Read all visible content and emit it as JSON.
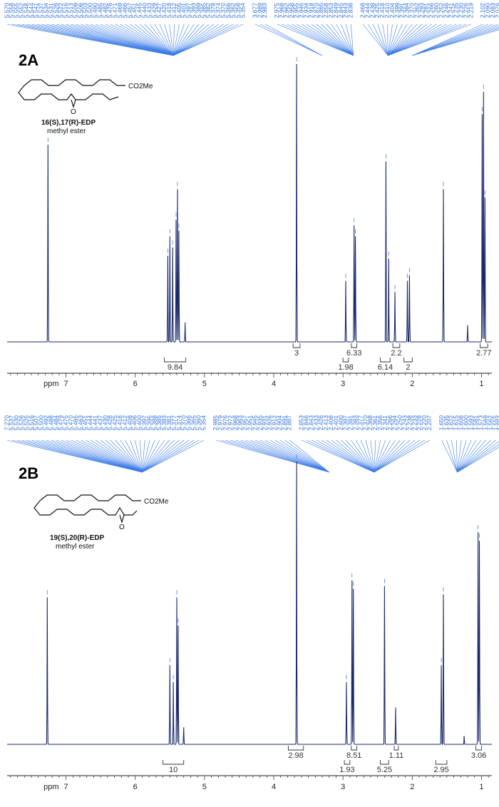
{
  "chart_data": [
    {
      "type": "line",
      "panel": "2A",
      "compound": {
        "name_bold": "16(S),17(R)-EDP",
        "name_line2": "methyl ester",
        "ester_label": "CO2Me",
        "epoxide_label": "O"
      },
      "xlabel": "ppm",
      "x_direction": "reversed",
      "xlim": [
        7.85,
        0.85
      ],
      "xticks": [
        7,
        6,
        5,
        4,
        3,
        2,
        1
      ],
      "peak_groups": [
        {
          "labels": [
            "5.570",
            "5.558",
            "5.555",
            "5.552",
            "5.548",
            "5.544",
            "5.541",
            "5.537",
            "5.534",
            "5.531",
            "5.526",
            "5.522",
            "5.516",
            "5.513",
            "5.509",
            "5.506",
            "5.503",
            "5.500",
            "5.490",
            "5.485",
            "5.482",
            "5.476",
            "5.471",
            "5.469",
            "5.466",
            "5.457",
            "5.451",
            "5.445",
            "5.440",
            "5.433",
            "5.429",
            "5.427",
            "5.420",
            "5.418",
            "5.412",
            "5.405",
            "5.401",
            "5.397",
            "5.393",
            "5.389",
            "5.385",
            "5.382",
            "5.378",
            "5.374",
            "5.370",
            "5.366",
            "5.362",
            "5.358",
            "5.354"
          ],
          "center_ppm": 5.45
        },
        {
          "labels": [
            "3.677",
            "2.989",
            "2.983"
          ],
          "center_ppm": 3.3
        },
        {
          "labels": [
            "2.975",
            "2.968",
            "2.962",
            "2.958",
            "2.955",
            "2.946",
            "2.934",
            "2.918",
            "2.870",
            "2.865",
            "2.858",
            "2.853",
            "2.849",
            "2.845",
            "2.843",
            "2.838"
          ],
          "center_ppm": 2.85
        },
        {
          "labels": [
            "2.468",
            "2.444",
            "2.438",
            "2.425",
            "2.418",
            "2.410",
            "2.404",
            "2.399",
            "2.391",
            "2.384",
            "2.370",
            "2.362",
            "2.293",
            "2.281",
            "2.266",
            "2.260",
            "2.252",
            "2.246",
            "2.241",
            "2.235",
            "2.230",
            "2.226",
            "2.219"
          ],
          "center_ppm": 2.35
        },
        {
          "labels": [
            "2.102",
            "2.090",
            "2.083",
            "2.076",
            "2.068",
            "2.061",
            "2.051",
            "2.042"
          ],
          "center_ppm": 2.0
        }
      ],
      "peaks": [
        {
          "ppm": 7.26,
          "height": 0.71
        },
        {
          "ppm": 5.53,
          "height": 0.31
        },
        {
          "ppm": 5.5,
          "height": 0.38
        },
        {
          "ppm": 5.46,
          "height": 0.34
        },
        {
          "ppm": 5.41,
          "height": 0.44
        },
        {
          "ppm": 5.39,
          "height": 0.55
        },
        {
          "ppm": 5.37,
          "height": 0.4
        },
        {
          "ppm": 5.28,
          "height": 0.07
        },
        {
          "ppm": 3.67,
          "height": 1.0
        },
        {
          "ppm": 2.96,
          "height": 0.22
        },
        {
          "ppm": 2.84,
          "height": 0.42
        },
        {
          "ppm": 2.82,
          "height": 0.38
        },
        {
          "ppm": 2.38,
          "height": 0.65
        },
        {
          "ppm": 2.34,
          "height": 0.3
        },
        {
          "ppm": 2.25,
          "height": 0.18
        },
        {
          "ppm": 2.07,
          "height": 0.22
        },
        {
          "ppm": 2.04,
          "height": 0.24
        },
        {
          "ppm": 1.55,
          "height": 0.55
        },
        {
          "ppm": 1.2,
          "height": 0.06
        },
        {
          "ppm": 0.99,
          "height": 0.82
        },
        {
          "ppm": 0.97,
          "height": 0.9
        },
        {
          "ppm": 0.95,
          "height": 0.52
        }
      ],
      "integrals": [
        {
          "label": "9.84",
          "from": 5.58,
          "to": 5.27,
          "row": 1
        },
        {
          "label": "3",
          "from": 3.72,
          "to": 3.62,
          "row": 0
        },
        {
          "label": "6.33",
          "from": 2.88,
          "to": 2.8,
          "row": 0
        },
        {
          "label": "1.98",
          "from": 3.0,
          "to": 2.92,
          "row": 1
        },
        {
          "label": "2.2",
          "from": 2.28,
          "to": 2.18,
          "row": 0
        },
        {
          "label": "6.14",
          "from": 2.46,
          "to": 2.32,
          "row": 1
        },
        {
          "label": "2",
          "from": 2.12,
          "to": 2.0,
          "row": 1
        },
        {
          "label": "2.77",
          "from": 1.02,
          "to": 0.91,
          "row": 0
        }
      ]
    },
    {
      "type": "line",
      "panel": "2B",
      "compound": {
        "name_bold": "19(S),20(R)-EDP",
        "name_line2": "methyl ester",
        "ester_label": "CO2Me",
        "epoxide_label": "O"
      },
      "xlabel": "ppm",
      "x_direction": "reversed",
      "xlim": [
        7.85,
        0.85
      ],
      "xticks": [
        7,
        6,
        5,
        4,
        3,
        2,
        1
      ],
      "peak_groups": [
        {
          "labels": [
            "7.270",
            "5.537",
            "5.530",
            "5.526",
            "5.525",
            "5.516",
            "5.507",
            "5.500",
            "5.492",
            "5.488",
            "5.484",
            "5.479",
            "5.475",
            "5.470",
            "5.465",
            "5.463",
            "5.451",
            "5.444",
            "5.441",
            "5.437",
            "5.430",
            "5.428",
            "5.425",
            "5.418",
            "5.412",
            "5.408",
            "5.406",
            "5.400",
            "5.397",
            "5.395",
            "5.388",
            "5.385",
            "5.383",
            "5.381",
            "5.377",
            "5.374",
            "5.370",
            "5.366",
            "5.365",
            "5.360",
            "5.354"
          ],
          "center_ppm": 5.9
        },
        {
          "labels": [
            "2.985",
            "2.979",
            "2.976",
            "2.972",
            "2.968",
            "2.963",
            "2.957",
            "2.951",
            "2.945",
            "2.935",
            "2.931",
            "2.926",
            "2.912",
            "2.904",
            "2.891",
            "2.887"
          ],
          "center_ppm": 3.2
        },
        {
          "labels": [
            "2.853",
            "2.846",
            "2.843",
            "2.433",
            "2.426",
            "2.413",
            "2.408",
            "2.401",
            "2.400",
            "2.397",
            "2.391",
            "2.383",
            "2.377",
            "2.370",
            "2.368",
            "2.361",
            "2.356",
            "2.341",
            "2.266",
            "2.264",
            "2.250",
            "2.243",
            "2.238",
            "2.233",
            "2.228",
            "2.220",
            "2.207"
          ],
          "center_ppm": 2.55
        },
        {
          "labels": [
            "1.650",
            "1.635",
            "1.622",
            "1.615",
            "1.608",
            "1.600",
            "1.593",
            "1.581",
            "1.573",
            "1.569",
            "1.562",
            "1.555",
            "1.554",
            "1.542",
            "1.535"
          ],
          "center_ppm": 1.35
        }
      ],
      "peaks": [
        {
          "ppm": 7.27,
          "height": 0.52
        },
        {
          "ppm": 5.5,
          "height": 0.28
        },
        {
          "ppm": 5.45,
          "height": 0.22
        },
        {
          "ppm": 5.4,
          "height": 0.52
        },
        {
          "ppm": 5.38,
          "height": 0.42
        },
        {
          "ppm": 5.3,
          "height": 0.06
        },
        {
          "ppm": 3.67,
          "height": 1.0
        },
        {
          "ppm": 2.95,
          "height": 0.22
        },
        {
          "ppm": 2.87,
          "height": 0.58
        },
        {
          "ppm": 2.85,
          "height": 0.55
        },
        {
          "ppm": 2.4,
          "height": 0.56
        },
        {
          "ppm": 2.24,
          "height": 0.13
        },
        {
          "ppm": 1.58,
          "height": 0.28
        },
        {
          "ppm": 1.55,
          "height": 0.53
        },
        {
          "ppm": 1.25,
          "height": 0.03
        },
        {
          "ppm": 1.05,
          "height": 0.75
        },
        {
          "ppm": 1.03,
          "height": 0.72
        }
      ],
      "integrals": [
        {
          "label": "10",
          "from": 5.6,
          "to": 5.3,
          "row": 1
        },
        {
          "label": "2.98",
          "from": 3.79,
          "to": 3.57,
          "row": 0
        },
        {
          "label": "8.51",
          "from": 2.88,
          "to": 2.8,
          "row": 0
        },
        {
          "label": "1.93",
          "from": 2.98,
          "to": 2.9,
          "row": 1
        },
        {
          "label": "1.11",
          "from": 2.26,
          "to": 2.2,
          "row": 0
        },
        {
          "label": "5.25",
          "from": 2.46,
          "to": 2.34,
          "row": 1
        },
        {
          "label": "2.95",
          "from": 1.66,
          "to": 1.5,
          "row": 1
        },
        {
          "label": "3.06",
          "from": 1.08,
          "to": 1.0,
          "row": 0
        }
      ]
    }
  ],
  "colors": {
    "spectrum": "#1b2a6b",
    "peak_label": "#2e6fd8",
    "peak_leader": "#3a7be6",
    "integral": "#333333",
    "axis": "#222222"
  }
}
